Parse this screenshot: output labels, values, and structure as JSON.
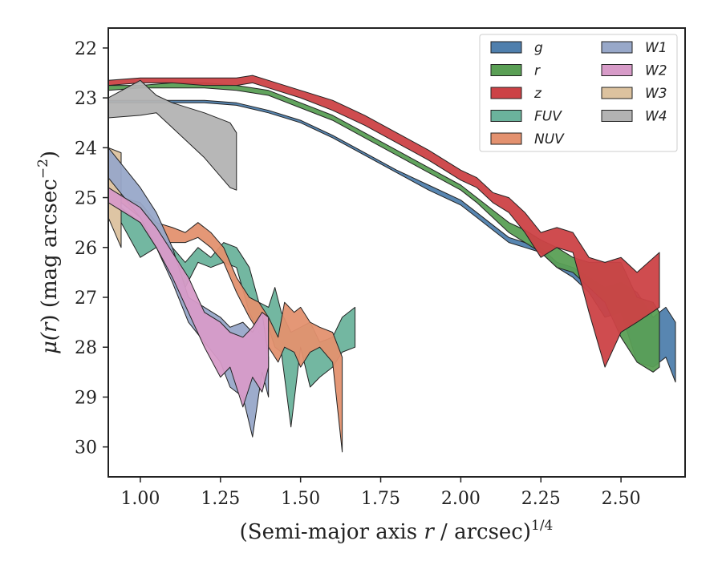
{
  "chart_data": {
    "type": "area",
    "title": "",
    "xlabel_text": "(Semi-major axis ",
    "xlabel_var": "r",
    "xlabel_unit": " / arcsec)",
    "xlabel_exp": "1/4",
    "ylabel_mu": "μ(",
    "ylabel_var": "r",
    "ylabel_unit": ") (mag arcsec",
    "ylabel_exp": "−2",
    "ylabel_close": ")",
    "xlim": [
      0.9,
      2.7
    ],
    "ylim": [
      30.6,
      21.6
    ],
    "y_inverted": true,
    "grid": false,
    "legend_placement": "top-right",
    "legend_columns": 2,
    "x_ticks": [
      1.0,
      1.25,
      1.5,
      1.75,
      2.0,
      2.25,
      2.5
    ],
    "x_tick_labels": [
      "1.00",
      "1.25",
      "1.50",
      "1.75",
      "2.00",
      "2.25",
      "2.50"
    ],
    "y_ticks": [
      22,
      23,
      24,
      25,
      26,
      27,
      28,
      29,
      30
    ],
    "y_tick_labels": [
      "22",
      "23",
      "24",
      "25",
      "26",
      "27",
      "28",
      "29",
      "30"
    ],
    "series": [
      {
        "name": "W3",
        "color": "#dcc29f",
        "x": [
          0.9,
          0.94
        ],
        "y_upper": [
          24.0,
          24.1
        ],
        "y_lower": [
          25.4,
          26.0
        ]
      },
      {
        "name": "FUV",
        "color": "#6bb39c",
        "x": [
          0.94,
          1.0,
          1.05,
          1.1,
          1.14,
          1.18,
          1.22,
          1.26,
          1.3,
          1.34,
          1.37,
          1.4,
          1.42,
          1.44,
          1.47,
          1.5,
          1.53,
          1.56,
          1.6,
          1.63,
          1.67
        ],
        "y_upper": [
          25.2,
          25.5,
          25.7,
          26.0,
          26.3,
          26.0,
          26.2,
          25.9,
          26.0,
          26.4,
          27.1,
          27.2,
          26.8,
          27.3,
          27.7,
          27.6,
          27.5,
          27.9,
          27.8,
          27.4,
          27.2
        ],
        "y_lower": [
          25.5,
          26.2,
          26.0,
          26.5,
          26.8,
          26.3,
          26.4,
          26.3,
          26.4,
          27.3,
          27.7,
          27.6,
          28.0,
          28.1,
          29.6,
          28.0,
          28.8,
          28.6,
          28.4,
          28.1,
          28.0
        ]
      },
      {
        "name": "NUV",
        "color": "#e3916f",
        "x": [
          0.94,
          1.0,
          1.05,
          1.1,
          1.14,
          1.18,
          1.22,
          1.26,
          1.3,
          1.34,
          1.37,
          1.4,
          1.43,
          1.45,
          1.48,
          1.5,
          1.53,
          1.56,
          1.6,
          1.63
        ],
        "y_upper": [
          25.0,
          25.1,
          25.5,
          25.6,
          25.7,
          25.5,
          25.7,
          26.0,
          26.6,
          27.0,
          27.1,
          27.4,
          27.8,
          27.1,
          27.3,
          27.2,
          27.5,
          27.6,
          27.7,
          28.2
        ],
        "y_lower": [
          25.1,
          25.4,
          25.9,
          25.9,
          25.9,
          25.8,
          26.0,
          26.3,
          26.9,
          27.4,
          27.7,
          28.0,
          28.3,
          28.0,
          28.1,
          28.4,
          28.1,
          28.0,
          28.3,
          30.1
        ]
      },
      {
        "name": "W1",
        "color": "#98a8c9",
        "x": [
          0.9,
          0.95,
          1.0,
          1.05,
          1.1,
          1.15,
          1.2,
          1.25,
          1.28,
          1.32,
          1.35,
          1.38,
          1.4
        ],
        "y_upper": [
          24.0,
          24.4,
          24.8,
          25.3,
          26.0,
          27.0,
          27.2,
          27.4,
          27.6,
          27.5,
          27.7,
          27.3,
          28.2
        ],
        "y_lower": [
          24.6,
          25.0,
          25.4,
          26.0,
          26.7,
          27.5,
          27.9,
          28.3,
          28.8,
          29.0,
          29.8,
          28.5,
          29.0
        ]
      },
      {
        "name": "W2",
        "color": "#d79bc8",
        "x": [
          0.9,
          0.95,
          1.0,
          1.05,
          1.1,
          1.15,
          1.2,
          1.25,
          1.28,
          1.32,
          1.35,
          1.38,
          1.4
        ],
        "y_upper": [
          24.8,
          25.0,
          25.2,
          25.6,
          26.1,
          26.6,
          27.3,
          27.5,
          27.7,
          27.8,
          27.6,
          27.3,
          27.4
        ],
        "y_lower": [
          25.1,
          25.3,
          25.5,
          26.0,
          26.6,
          27.3,
          28.0,
          28.6,
          28.4,
          29.2,
          28.6,
          28.9,
          28.4
        ]
      },
      {
        "name": "g",
        "color": "#4f7fad",
        "x": [
          0.9,
          1.0,
          1.1,
          1.2,
          1.3,
          1.4,
          1.5,
          1.6,
          1.7,
          1.8,
          1.9,
          2.0,
          2.05,
          2.1,
          2.15,
          2.2,
          2.25,
          2.3,
          2.35,
          2.4,
          2.45,
          2.5,
          2.55,
          2.6,
          2.64,
          2.67
        ],
        "y_upper": [
          23.05,
          23.05,
          23.05,
          23.05,
          23.1,
          23.25,
          23.45,
          23.75,
          24.1,
          24.45,
          24.75,
          25.05,
          25.3,
          25.55,
          25.8,
          25.9,
          26.0,
          26.3,
          26.4,
          26.6,
          26.8,
          26.7,
          26.9,
          27.4,
          27.2,
          27.5
        ],
        "y_lower": [
          23.1,
          23.1,
          23.1,
          23.1,
          23.15,
          23.3,
          23.5,
          23.8,
          24.15,
          24.5,
          24.85,
          25.15,
          25.4,
          25.65,
          25.9,
          26.0,
          26.1,
          26.4,
          26.6,
          26.9,
          27.4,
          27.3,
          28.3,
          28.4,
          28.2,
          28.7
        ]
      },
      {
        "name": "r",
        "color": "#5a9f55",
        "x": [
          0.9,
          1.0,
          1.1,
          1.2,
          1.3,
          1.4,
          1.5,
          1.6,
          1.7,
          1.8,
          1.9,
          2.0,
          2.05,
          2.1,
          2.15,
          2.2,
          2.25,
          2.3,
          2.35,
          2.4,
          2.45,
          2.5,
          2.55,
          2.6,
          2.62
        ],
        "y_upper": [
          22.75,
          22.75,
          22.7,
          22.7,
          22.75,
          22.85,
          23.1,
          23.35,
          23.7,
          24.05,
          24.4,
          24.75,
          25.0,
          25.25,
          25.5,
          25.65,
          25.85,
          26.0,
          26.2,
          26.3,
          26.3,
          26.3,
          27.0,
          27.1,
          27.3
        ],
        "y_lower": [
          22.85,
          22.8,
          22.8,
          22.8,
          22.85,
          22.95,
          23.2,
          23.45,
          23.8,
          24.15,
          24.5,
          24.85,
          25.1,
          25.4,
          25.7,
          25.9,
          26.1,
          26.4,
          26.5,
          26.8,
          27.1,
          27.8,
          28.3,
          28.5,
          28.4
        ]
      },
      {
        "name": "z",
        "color": "#cc4246",
        "x": [
          0.9,
          1.0,
          1.1,
          1.2,
          1.3,
          1.35,
          1.4,
          1.5,
          1.6,
          1.7,
          1.8,
          1.9,
          2.0,
          2.05,
          2.1,
          2.15,
          2.2,
          2.25,
          2.3,
          2.35,
          2.4,
          2.45,
          2.5,
          2.55,
          2.62
        ],
        "y_upper": [
          22.65,
          22.6,
          22.6,
          22.6,
          22.6,
          22.55,
          22.65,
          22.85,
          23.05,
          23.35,
          23.7,
          24.05,
          24.45,
          24.6,
          24.9,
          25.0,
          25.3,
          25.7,
          25.6,
          25.7,
          26.2,
          26.3,
          26.2,
          26.5,
          26.1
        ],
        "y_lower": [
          22.75,
          22.7,
          22.7,
          22.75,
          22.75,
          22.7,
          22.8,
          23.0,
          23.25,
          23.55,
          23.9,
          24.25,
          24.65,
          24.8,
          25.1,
          25.3,
          25.7,
          26.2,
          26.0,
          26.1,
          27.3,
          28.4,
          27.7,
          27.5,
          27.2
        ]
      },
      {
        "name": "W4",
        "color": "#b3b3b3",
        "x": [
          0.9,
          1.0,
          1.05,
          1.1,
          1.2,
          1.28,
          1.3
        ],
        "y_upper": [
          23.0,
          22.65,
          22.95,
          23.1,
          23.3,
          23.5,
          23.7
        ],
        "y_lower": [
          23.4,
          23.35,
          23.3,
          23.6,
          24.2,
          24.8,
          24.85
        ]
      }
    ],
    "legend": [
      {
        "name": "g",
        "color": "#4f7fad"
      },
      {
        "name": "r",
        "color": "#5a9f55"
      },
      {
        "name": "z",
        "color": "#cc4246"
      },
      {
        "name": "FUV",
        "color": "#6bb39c"
      },
      {
        "name": "NUV",
        "color": "#e3916f"
      },
      {
        "name": "W1",
        "color": "#98a8c9"
      },
      {
        "name": "W2",
        "color": "#d79bc8"
      },
      {
        "name": "W3",
        "color": "#dcc29f"
      },
      {
        "name": "W4",
        "color": "#b3b3b3"
      }
    ]
  }
}
